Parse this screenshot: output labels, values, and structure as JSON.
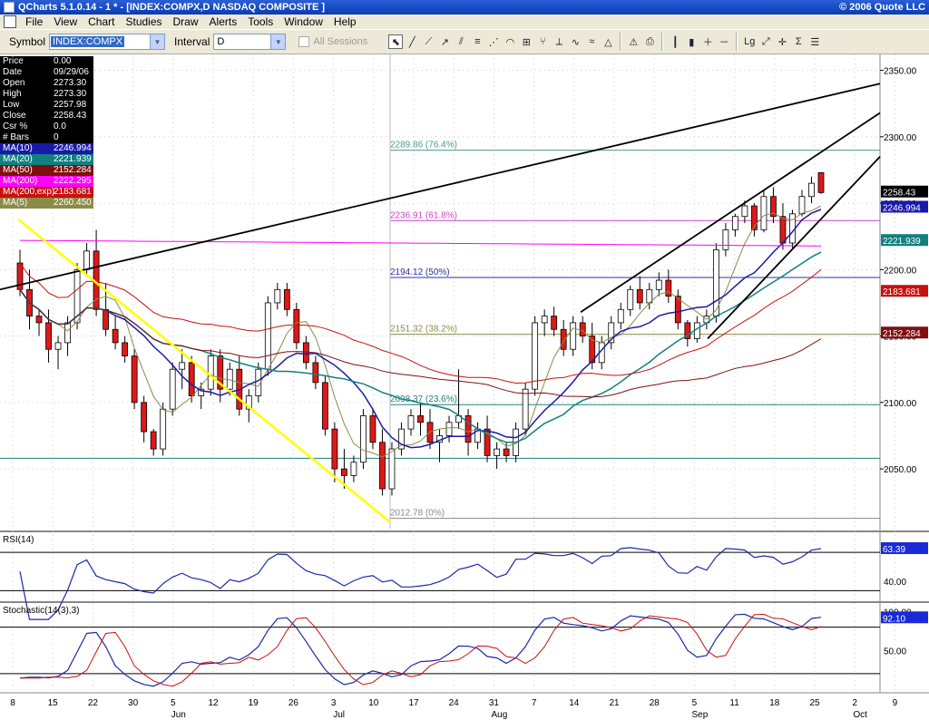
{
  "window": {
    "title": "QCharts 5.1.0.14 - 1 * - [INDEX:COMPX,D NASDAQ COMPOSITE  ]",
    "copyright": "© 2006 Quote LLC"
  },
  "menu": [
    "File",
    "View",
    "Chart",
    "Studies",
    "Draw",
    "Alerts",
    "Tools",
    "Window",
    "Help"
  ],
  "toolbar": {
    "symbol_label": "Symbol",
    "symbol_value": "INDEX:COMPX",
    "interval_label": "Interval",
    "interval_value": "D",
    "all_sessions_label": "All Sessions",
    "tool_icons": [
      "pointer-icon",
      "line-icon",
      "ray-icon",
      "arrow-line-icon",
      "channel-icon",
      "fib-retracement-icon",
      "fib-fan-icon",
      "fib-arc-icon",
      "gann-icon",
      "andrews-fork-icon",
      "speed-line-icon",
      "cycle-icon",
      "regression-icon",
      "triangle-icon",
      "alert-icon",
      "print-icon",
      "bar-style-icon",
      "candle-style-icon",
      "zoom-in-icon",
      "zoom-out-icon",
      "log-scale-icon",
      "auto-scale-icon",
      "crosshair-icon",
      "study-icon",
      "properties-icon"
    ]
  },
  "data_panel": [
    {
      "label": "Price",
      "value": "0.00",
      "bg": "#000000"
    },
    {
      "label": "Date",
      "value": "09/29/06",
      "bg": "#000000"
    },
    {
      "label": "Open",
      "value": "2273.30",
      "bg": "#000000"
    },
    {
      "label": "High",
      "value": "2273.30",
      "bg": "#000000"
    },
    {
      "label": "Low",
      "value": "2257.98",
      "bg": "#000000"
    },
    {
      "label": "Close",
      "value": "2258.43",
      "bg": "#000000"
    },
    {
      "label": "Csr %",
      "value": "0.0",
      "bg": "#000000"
    },
    {
      "label": "# Bars",
      "value": "0",
      "bg": "#000000"
    },
    {
      "label": "MA(10)",
      "value": "2246.994",
      "bg": "#1a1aa8"
    },
    {
      "label": "MA(20)",
      "value": "2221.939",
      "bg": "#108080"
    },
    {
      "label": "MA(50)",
      "value": "2152.284",
      "bg": "#801010"
    },
    {
      "label": "MA(200)",
      "value": "2222.295",
      "bg": "#ff00ff"
    },
    {
      "label": "MA(200,exp)",
      "value": "2183.681",
      "bg": "#c81010"
    },
    {
      "label": "MA(5)",
      "value": "2260.450",
      "bg": "#8b8b48"
    }
  ],
  "chart_data": {
    "type": "candlestick",
    "symbol": "INDEX:COMPX",
    "price_axis": {
      "ylim": [
        2005,
        2362
      ],
      "ticks": [
        2050,
        2100,
        2150,
        2200,
        2250,
        2300,
        2350
      ],
      "tick_labels": [
        "2050.00",
        "2100.00",
        "2150.00",
        "2200.00",
        "2250.00",
        "2300.00",
        "2350.00"
      ]
    },
    "date_axis": {
      "day_labels": [
        "8",
        "15",
        "22",
        "30",
        "5",
        "12",
        "19",
        "26",
        "3",
        "10",
        "17",
        "24",
        "31",
        "7",
        "14",
        "21",
        "28",
        "5",
        "11",
        "18",
        "25",
        "2",
        "9"
      ],
      "month_labels": [
        "Jun",
        "Jul",
        "Aug",
        "Sep",
        "Oct"
      ]
    },
    "candles": [
      [
        2205,
        2215,
        2180,
        2185
      ],
      [
        2185,
        2200,
        2155,
        2165
      ],
      [
        2165,
        2170,
        2150,
        2160
      ],
      [
        2160,
        2170,
        2130,
        2140
      ],
      [
        2140,
        2150,
        2125,
        2145
      ],
      [
        2145,
        2165,
        2135,
        2160
      ],
      [
        2160,
        2205,
        2155,
        2200
      ],
      [
        2200,
        2220,
        2195,
        2214
      ],
      [
        2214,
        2230,
        2165,
        2170
      ],
      [
        2170,
        2190,
        2150,
        2155
      ],
      [
        2155,
        2165,
        2140,
        2145
      ],
      [
        2145,
        2150,
        2130,
        2135
      ],
      [
        2135,
        2140,
        2095,
        2100
      ],
      [
        2100,
        2105,
        2070,
        2078
      ],
      [
        2078,
        2080,
        2060,
        2065
      ],
      [
        2065,
        2100,
        2060,
        2095
      ],
      [
        2095,
        2130,
        2090,
        2125
      ],
      [
        2125,
        2140,
        2110,
        2130
      ],
      [
        2130,
        2135,
        2100,
        2105
      ],
      [
        2105,
        2115,
        2095,
        2110
      ],
      [
        2110,
        2140,
        2105,
        2135
      ],
      [
        2135,
        2140,
        2100,
        2110
      ],
      [
        2110,
        2130,
        2105,
        2125
      ],
      [
        2125,
        2135,
        2090,
        2095
      ],
      [
        2095,
        2110,
        2085,
        2105
      ],
      [
        2105,
        2130,
        2100,
        2125
      ],
      [
        2125,
        2180,
        2120,
        2175
      ],
      [
        2175,
        2190,
        2170,
        2185
      ],
      [
        2185,
        2190,
        2165,
        2170
      ],
      [
        2170,
        2175,
        2140,
        2145
      ],
      [
        2145,
        2150,
        2125,
        2130
      ],
      [
        2130,
        2135,
        2110,
        2115
      ],
      [
        2115,
        2120,
        2075,
        2080
      ],
      [
        2080,
        2085,
        2040,
        2050
      ],
      [
        2050,
        2065,
        2035,
        2045
      ],
      [
        2045,
        2060,
        2040,
        2055
      ],
      [
        2055,
        2095,
        2050,
        2090
      ],
      [
        2090,
        2095,
        2065,
        2070
      ],
      [
        2070,
        2080,
        2030,
        2035
      ],
      [
        2035,
        2070,
        2030,
        2065
      ],
      [
        2065,
        2085,
        2060,
        2080
      ],
      [
        2080,
        2095,
        2075,
        2090
      ],
      [
        2090,
        2100,
        2075,
        2085
      ],
      [
        2085,
        2095,
        2065,
        2070
      ],
      [
        2070,
        2080,
        2055,
        2075
      ],
      [
        2075,
        2090,
        2070,
        2085
      ],
      [
        2085,
        2125,
        2080,
        2090
      ],
      [
        2090,
        2095,
        2060,
        2070
      ],
      [
        2070,
        2085,
        2065,
        2080
      ],
      [
        2080,
        2090,
        2055,
        2060
      ],
      [
        2060,
        2070,
        2050,
        2065
      ],
      [
        2065,
        2070,
        2055,
        2060
      ],
      [
        2060,
        2085,
        2055,
        2080
      ],
      [
        2080,
        2115,
        2075,
        2110
      ],
      [
        2110,
        2165,
        2105,
        2160
      ],
      [
        2160,
        2170,
        2150,
        2165
      ],
      [
        2165,
        2172,
        2150,
        2155
      ],
      [
        2155,
        2162,
        2135,
        2140
      ],
      [
        2140,
        2165,
        2135,
        2160
      ],
      [
        2160,
        2165,
        2145,
        2150
      ],
      [
        2150,
        2160,
        2125,
        2130
      ],
      [
        2130,
        2150,
        2125,
        2145
      ],
      [
        2145,
        2165,
        2140,
        2160
      ],
      [
        2160,
        2175,
        2155,
        2170
      ],
      [
        2170,
        2188,
        2165,
        2185
      ],
      [
        2185,
        2195,
        2170,
        2175
      ],
      [
        2175,
        2190,
        2170,
        2185
      ],
      [
        2185,
        2198,
        2180,
        2192
      ],
      [
        2192,
        2200,
        2175,
        2180
      ],
      [
        2180,
        2185,
        2155,
        2160
      ],
      [
        2160,
        2162,
        2142,
        2148
      ],
      [
        2148,
        2165,
        2145,
        2160
      ],
      [
        2160,
        2170,
        2155,
        2165
      ],
      [
        2165,
        2220,
        2160,
        2215
      ],
      [
        2215,
        2235,
        2210,
        2230
      ],
      [
        2230,
        2242,
        2225,
        2240
      ],
      [
        2240,
        2252,
        2235,
        2248
      ],
      [
        2248,
        2250,
        2225,
        2230
      ],
      [
        2230,
        2260,
        2228,
        2255
      ],
      [
        2255,
        2262,
        2235,
        2240
      ],
      [
        2240,
        2250,
        2215,
        2220
      ],
      [
        2220,
        2245,
        2215,
        2242
      ],
      [
        2242,
        2260,
        2240,
        2255
      ],
      [
        2255,
        2270,
        2250,
        2265
      ],
      [
        2273,
        2273,
        2257,
        2258
      ]
    ],
    "indicators": [
      {
        "name": "MA(10)",
        "value": 2246.994,
        "color": "#1a1aa8"
      },
      {
        "name": "MA(20)",
        "value": 2221.939,
        "color": "#108080"
      },
      {
        "name": "MA(50)",
        "value": 2152.284,
        "color": "#801010"
      },
      {
        "name": "MA(200)",
        "value": 2222.295,
        "color": "#ff00ff"
      },
      {
        "name": "MA(200,exp)",
        "value": 2183.681,
        "color": "#c81010"
      },
      {
        "name": "MA(5)",
        "value": 2260.45,
        "color": "#8b8b48"
      }
    ],
    "fib_levels": [
      {
        "label": "2289.86 (76.4%)",
        "price": 2289.86,
        "color": "#4a9a8a"
      },
      {
        "label": "2236.91 (61.8%)",
        "price": 2236.91,
        "color": "#cc44cc"
      },
      {
        "label": "2194.12 (50%)",
        "price": 2194.12,
        "color": "#3030a0"
      },
      {
        "label": "2151.32 (38.2%)",
        "price": 2151.32,
        "color": "#8b8b48"
      },
      {
        "label": "2098.37 (23.6%)",
        "price": 2098.37,
        "color": "#208080"
      },
      {
        "label": "2012.78 (0%)",
        "price": 2012.78,
        "color": "#888888"
      }
    ],
    "horizontal_line": {
      "price": 2058,
      "color": "#208080"
    },
    "last_price_labels": [
      {
        "value": "2258.43",
        "bg": "#000000",
        "fg": "#ffffff",
        "price": 2258.43
      },
      {
        "value": "2246.994",
        "bg": "#1a1aa8",
        "fg": "#ffffff",
        "price": 2246.994
      },
      {
        "value": "2221.939",
        "bg": "#108080",
        "fg": "#ffffff",
        "price": 2221.939
      },
      {
        "value": "2183.681",
        "bg": "#c81010",
        "fg": "#ffffff",
        "price": 2183.681
      },
      {
        "value": "2152.284",
        "bg": "#801010",
        "fg": "#ffffff",
        "price": 2152.284
      }
    ],
    "rsi": {
      "label": "RSI(14)",
      "value": "63.39",
      "tick_labels": [
        "40.00"
      ]
    },
    "stochastic": {
      "label": "Stochastic(14(3),3)",
      "value": "92.10",
      "tick_labels": [
        "100.00",
        "50.00"
      ]
    }
  }
}
